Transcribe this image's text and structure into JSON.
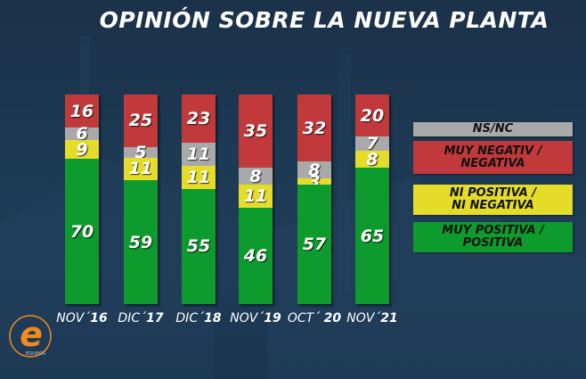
{
  "title": "OPINIÓN SOBRE LA NUEVA PLANTA",
  "colors": {
    "negative": "#c1393b",
    "nsnc": "#a9a9aa",
    "neutral": "#e5dc2a",
    "positive": "#0c9b2c",
    "background": "#1d3a55",
    "logo": "#f08a1e"
  },
  "legend": [
    {
      "key": "nsnc",
      "label": "NS/NC"
    },
    {
      "key": "negative",
      "label": "MUY NEGATIV / NEGATIVA"
    },
    {
      "key": "neutral",
      "label": "NI POSITIVA / NI NEGATIVA"
    },
    {
      "key": "positive",
      "label": "MUY POSITIVA / POSITIVA"
    }
  ],
  "x_labels": [
    {
      "prefix": "NOV´",
      "year": "16"
    },
    {
      "prefix": "DIC´",
      "year": "17"
    },
    {
      "prefix": "DIC´",
      "year": "18"
    },
    {
      "prefix": "NOV´",
      "year": "19"
    },
    {
      "prefix": "OCT´ ",
      "year": "20"
    },
    {
      "prefix": "NOV´",
      "year": "21"
    }
  ],
  "logo": {
    "letter": "e",
    "text": "EQUIPOS"
  },
  "chart_data": {
    "type": "bar",
    "stacked": true,
    "title": "OPINIÓN SOBRE LA NUEVA PLANTA",
    "categories": [
      "NOV´16",
      "DIC´17",
      "DIC´18",
      "NOV´19",
      "OCT´20",
      "NOV´21"
    ],
    "series": [
      {
        "name": "MUY POSITIVA / POSITIVA",
        "color": "#0c9b2c",
        "values": [
          70,
          59,
          55,
          46,
          57,
          65
        ]
      },
      {
        "name": "NI POSITIVA / NI NEGATIVA",
        "color": "#e5dc2a",
        "values": [
          9,
          11,
          11,
          11,
          3,
          8
        ]
      },
      {
        "name": "NS/NC",
        "color": "#a9a9aa",
        "values": [
          6,
          5,
          11,
          8,
          8,
          7
        ]
      },
      {
        "name": "MUY NEGATIV / NEGATIVA",
        "color": "#c1393b",
        "values": [
          16,
          25,
          23,
          35,
          32,
          20
        ]
      }
    ],
    "xlabel": "",
    "ylabel": "",
    "ylim": [
      0,
      100
    ],
    "grid": false,
    "legend_position": "right",
    "data_labels": true
  }
}
